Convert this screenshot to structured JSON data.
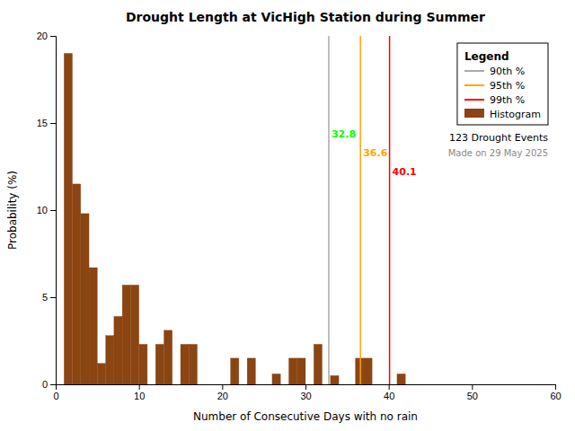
{
  "chart_data": {
    "type": "histogram",
    "title": "Drought Length at VicHigh Station during Summer",
    "xlabel": "Number of Consecutive Days with no rain",
    "ylabel": "Probability (%)",
    "xlim": [
      0,
      60
    ],
    "ylim": [
      0,
      20
    ],
    "xticks": [
      0,
      10,
      20,
      30,
      40,
      50,
      60
    ],
    "yticks": [
      0,
      5,
      10,
      15,
      20
    ],
    "grid": false,
    "name": "Histogram",
    "color": "#8B4513",
    "bins": [
      1,
      2,
      3,
      4,
      5,
      6,
      7,
      8,
      9,
      10,
      11,
      12,
      13,
      14,
      15,
      16,
      17,
      18,
      19,
      20,
      21,
      22,
      23,
      24,
      25,
      26,
      27,
      28,
      29,
      30,
      31,
      32,
      33,
      34,
      35,
      36,
      37,
      38,
      39,
      40,
      41,
      42,
      43,
      44,
      45,
      46,
      47,
      48,
      49,
      50,
      51
    ],
    "values": [
      19.0,
      11.5,
      9.8,
      6.7,
      1.2,
      2.8,
      3.9,
      5.7,
      5.7,
      2.3,
      0.0,
      2.3,
      3.1,
      0.0,
      2.3,
      2.3,
      0.0,
      0.0,
      0.0,
      0.0,
      1.5,
      0.0,
      1.5,
      0.0,
      0.0,
      0.6,
      0.0,
      1.5,
      1.5,
      0.0,
      2.3,
      0.0,
      0.5,
      0.0,
      0.0,
      1.5,
      1.5,
      0.0,
      0.0,
      0.0,
      0.6,
      0.0,
      0.0,
      0.0,
      0.0,
      0.0,
      0.0,
      0.0,
      0.0,
      0.0
    ],
    "lines": [
      {
        "name": "90th %",
        "value": 32.8,
        "color": "#aaaaaa",
        "label_color": "#00FF00"
      },
      {
        "name": "95th %",
        "value": 36.6,
        "color": "#FFA500",
        "label_color": "#FFA500"
      },
      {
        "name": "99th %",
        "value": 40.1,
        "color": "#FF0000",
        "label_color": "#FF0000"
      }
    ],
    "legend": "upper right",
    "legend_title": "Legend",
    "annotations": [
      "123 Drought Events",
      "Made on 29 May 2025"
    ]
  }
}
